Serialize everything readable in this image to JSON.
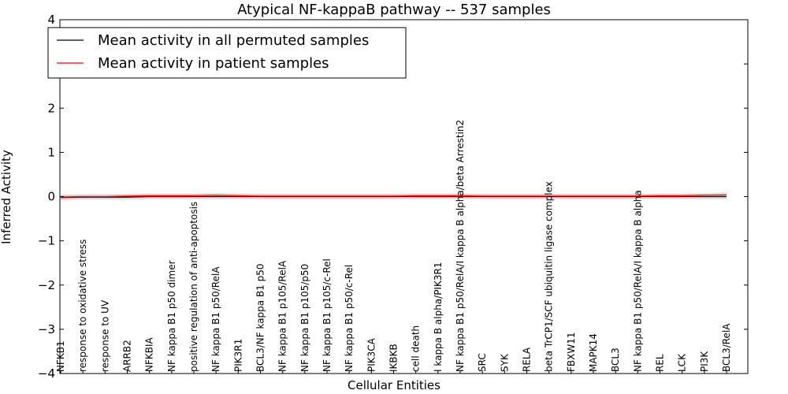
{
  "chart_data": {
    "type": "line",
    "title": "Atypical NF-kappaB pathway -- 537 samples",
    "xlabel": "Cellular Entities",
    "ylabel": "Inferred Activity",
    "ylim": [
      -4,
      4
    ],
    "yticks": [
      -4,
      -3,
      -2,
      -1,
      0,
      1,
      2,
      3,
      4
    ],
    "ytick_labels": [
      "−4",
      "−3",
      "−2",
      "−1",
      "0",
      "1",
      "2",
      "3",
      "4"
    ],
    "grid": false,
    "legend_position": "top-left",
    "categories": [
      "NFKB1",
      "response to oxidative stress",
      "response to UV",
      "ARRB2",
      "NFKBIA",
      "NF kappa B1 p50 dimer",
      "positive regulation of anti-apoptosis",
      "NF kappa B1 p50/RelA",
      "PIK3R1",
      "BCL3/NF kappa B1 p50",
      "NF kappa B1 p105/RelA",
      "NF kappa B1 p105/p50",
      "NF kappa B1 p105/c-Rel",
      "NF kappa B1 p50/c-Rel",
      "PIK3CA",
      "IKBKB",
      "cell death",
      "I kappa B alpha/PIK3R1",
      "NF kappa B1 p50/RelA/I kappa B alpha/beta Arrestin2",
      "SRC",
      "SYK",
      "RELA",
      "beta TrCP1/SCF ubiquitin ligase complex",
      "FBXW11",
      "MAPK14",
      "BCL3",
      "NF kappa B1 p50/RelA/I kappa B alpha",
      "REL",
      "LCK",
      "PI3K",
      "BCL3/RelA"
    ],
    "series": [
      {
        "name": "Mean activity in all permuted samples",
        "color": "#000000",
        "values": [
          -0.02,
          -0.01,
          -0.01,
          -0.01,
          0.0,
          0.0,
          0.0,
          0.0,
          0.0,
          0.0,
          0.0,
          0.0,
          0.0,
          0.0,
          0.0,
          0.0,
          0.0,
          0.0,
          0.0,
          0.0,
          0.0,
          0.0,
          0.0,
          0.0,
          0.0,
          0.0,
          0.0,
          0.0,
          0.0,
          0.0,
          0.0
        ]
      },
      {
        "name": "Mean activity in patient samples",
        "color": "#ff0000",
        "values": [
          -0.01,
          0.0,
          0.0,
          0.01,
          0.02,
          0.02,
          0.02,
          0.03,
          0.02,
          0.01,
          0.01,
          0.01,
          0.01,
          0.01,
          0.01,
          0.01,
          0.02,
          0.02,
          0.02,
          0.01,
          0.01,
          0.01,
          0.01,
          0.01,
          0.01,
          0.01,
          0.01,
          0.02,
          0.02,
          0.03,
          0.04
        ]
      }
    ],
    "band_colors": {
      "permuted": "#c8c8c8",
      "patient": "#f0b4b4"
    }
  }
}
